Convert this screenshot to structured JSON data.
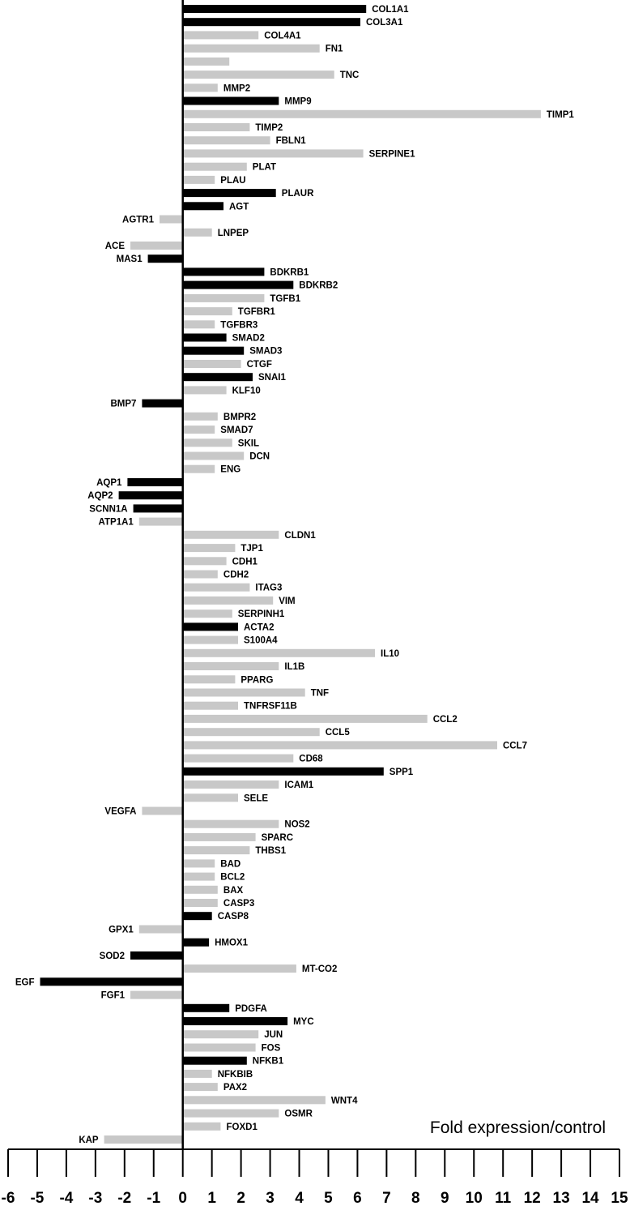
{
  "chart_data": {
    "type": "bar",
    "orientation": "horizontal",
    "xlabel": "Fold expression/control",
    "xlim": [
      -6,
      15
    ],
    "xticks": [
      -6,
      -5,
      -4,
      -3,
      -2,
      -1,
      0,
      1,
      2,
      3,
      4,
      5,
      6,
      7,
      8,
      9,
      10,
      11,
      12,
      13,
      14,
      15
    ],
    "colors": {
      "significant": "#000000",
      "not_significant": "#c8c8c8"
    },
    "genes": [
      {
        "name": "COL1A1",
        "value": 6.3,
        "sig": true
      },
      {
        "name": "COL3A1",
        "value": 6.1,
        "sig": true
      },
      {
        "name": "COL4A1",
        "value": 2.6,
        "sig": false
      },
      {
        "name": "FN1",
        "value": 4.7,
        "sig": false
      },
      {
        "name": "",
        "value": 1.6,
        "sig": false
      },
      {
        "name": "TNC",
        "value": 5.2,
        "sig": false
      },
      {
        "name": "MMP2",
        "value": 1.2,
        "sig": false
      },
      {
        "name": "MMP9",
        "value": 3.3,
        "sig": true
      },
      {
        "name": "TIMP1",
        "value": 12.3,
        "sig": false
      },
      {
        "name": "TIMP2",
        "value": 2.3,
        "sig": false
      },
      {
        "name": "FBLN1",
        "value": 3.0,
        "sig": false
      },
      {
        "name": "SERPINE1",
        "value": 6.2,
        "sig": false
      },
      {
        "name": "PLAT",
        "value": 2.2,
        "sig": false
      },
      {
        "name": "PLAU",
        "value": 1.1,
        "sig": false
      },
      {
        "name": "PLAUR",
        "value": 3.2,
        "sig": true
      },
      {
        "name": "AGT",
        "value": 1.4,
        "sig": true
      },
      {
        "name": "AGTR1",
        "value": -0.8,
        "sig": false
      },
      {
        "name": "LNPEP",
        "value": 1.0,
        "sig": false
      },
      {
        "name": "ACE",
        "value": -1.8,
        "sig": false
      },
      {
        "name": "MAS1",
        "value": -1.2,
        "sig": true
      },
      {
        "name": "BDKRB1",
        "value": 2.8,
        "sig": true
      },
      {
        "name": "BDKRB2",
        "value": 3.8,
        "sig": true
      },
      {
        "name": "TGFB1",
        "value": 2.8,
        "sig": false
      },
      {
        "name": "TGFBR1",
        "value": 1.7,
        "sig": false
      },
      {
        "name": "TGFBR3",
        "value": 1.1,
        "sig": false
      },
      {
        "name": "SMAD2",
        "value": 1.5,
        "sig": true
      },
      {
        "name": "SMAD3",
        "value": 2.1,
        "sig": true
      },
      {
        "name": "CTGF",
        "value": 2.0,
        "sig": false
      },
      {
        "name": "SNAI1",
        "value": 2.4,
        "sig": true
      },
      {
        "name": "KLF10",
        "value": 1.5,
        "sig": false
      },
      {
        "name": "BMP7",
        "value": -1.4,
        "sig": true
      },
      {
        "name": "BMPR2",
        "value": 1.2,
        "sig": false
      },
      {
        "name": "SMAD7",
        "value": 1.1,
        "sig": false
      },
      {
        "name": "SKIL",
        "value": 1.7,
        "sig": false
      },
      {
        "name": "DCN",
        "value": 2.1,
        "sig": false
      },
      {
        "name": "ENG",
        "value": 1.1,
        "sig": false
      },
      {
        "name": "AQP1",
        "value": -1.9,
        "sig": true
      },
      {
        "name": "AQP2",
        "value": -2.2,
        "sig": true
      },
      {
        "name": "SCNN1A",
        "value": -1.7,
        "sig": true
      },
      {
        "name": "ATP1A1",
        "value": -1.5,
        "sig": false
      },
      {
        "name": "CLDN1",
        "value": 3.3,
        "sig": false
      },
      {
        "name": "TJP1",
        "value": 1.8,
        "sig": false
      },
      {
        "name": "CDH1",
        "value": 1.5,
        "sig": false
      },
      {
        "name": "CDH2",
        "value": 1.2,
        "sig": false
      },
      {
        "name": "ITAG3",
        "value": 2.3,
        "sig": false
      },
      {
        "name": "VIM",
        "value": 3.1,
        "sig": false
      },
      {
        "name": "SERPINH1",
        "value": 1.7,
        "sig": false
      },
      {
        "name": "ACTA2",
        "value": 1.9,
        "sig": true
      },
      {
        "name": "S100A4",
        "value": 1.9,
        "sig": false
      },
      {
        "name": "IL10",
        "value": 6.6,
        "sig": false
      },
      {
        "name": "IL1B",
        "value": 3.3,
        "sig": false
      },
      {
        "name": "PPARG",
        "value": 1.8,
        "sig": false
      },
      {
        "name": "TNF",
        "value": 4.2,
        "sig": false
      },
      {
        "name": "TNFRSF11B",
        "value": 1.9,
        "sig": false
      },
      {
        "name": "CCL2",
        "value": 8.4,
        "sig": false
      },
      {
        "name": "CCL5",
        "value": 4.7,
        "sig": false
      },
      {
        "name": "CCL7",
        "value": 10.8,
        "sig": false
      },
      {
        "name": "CD68",
        "value": 3.8,
        "sig": false
      },
      {
        "name": "SPP1",
        "value": 6.9,
        "sig": true
      },
      {
        "name": "ICAM1",
        "value": 3.3,
        "sig": false
      },
      {
        "name": "SELE",
        "value": 1.9,
        "sig": false
      },
      {
        "name": "VEGFA",
        "value": -1.4,
        "sig": false
      },
      {
        "name": "NOS2",
        "value": 3.3,
        "sig": false
      },
      {
        "name": "SPARC",
        "value": 2.5,
        "sig": false
      },
      {
        "name": "THBS1",
        "value": 2.3,
        "sig": false
      },
      {
        "name": "BAD",
        "value": 1.1,
        "sig": false
      },
      {
        "name": "BCL2",
        "value": 1.1,
        "sig": false
      },
      {
        "name": "BAX",
        "value": 1.2,
        "sig": false
      },
      {
        "name": "CASP3",
        "value": 1.2,
        "sig": false
      },
      {
        "name": "CASP8",
        "value": 1.0,
        "sig": true
      },
      {
        "name": "GPX1",
        "value": -1.5,
        "sig": false
      },
      {
        "name": "HMOX1",
        "value": 0.9,
        "sig": true
      },
      {
        "name": "SOD2",
        "value": -1.8,
        "sig": true
      },
      {
        "name": "MT-CO2",
        "value": 3.9,
        "sig": false
      },
      {
        "name": "EGF",
        "value": -4.9,
        "sig": true
      },
      {
        "name": "FGF1",
        "value": -1.8,
        "sig": false
      },
      {
        "name": "PDGFA",
        "value": 1.6,
        "sig": true
      },
      {
        "name": "MYC",
        "value": 3.6,
        "sig": true
      },
      {
        "name": "JUN",
        "value": 2.6,
        "sig": false
      },
      {
        "name": "FOS",
        "value": 2.5,
        "sig": false
      },
      {
        "name": "NFKB1",
        "value": 2.2,
        "sig": true
      },
      {
        "name": "NFKBIB",
        "value": 1.0,
        "sig": false
      },
      {
        "name": "PAX2",
        "value": 1.2,
        "sig": false
      },
      {
        "name": "WNT4",
        "value": 4.9,
        "sig": false
      },
      {
        "name": "OSMR",
        "value": 3.3,
        "sig": false
      },
      {
        "name": "FOXD1",
        "value": 1.3,
        "sig": false
      },
      {
        "name": "KAP",
        "value": -2.7,
        "sig": false
      }
    ]
  }
}
